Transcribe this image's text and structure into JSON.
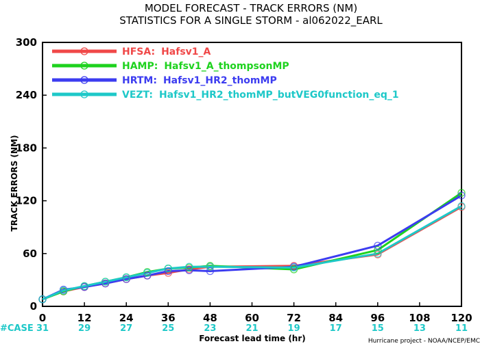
{
  "title_line1": "MODEL FORECAST - TRACK ERRORS (NM)",
  "title_line2": "STATISTICS FOR A SINGLE STORM - al062022_EARL",
  "credit": "Hurricane project - NOAA/NCEP/EMC",
  "case_label": "#CASE",
  "chart_data": {
    "type": "line",
    "title": "MODEL FORECAST - TRACK ERRORS (NM)",
    "subtitle": "STATISTICS FOR A SINGLE STORM - al062022_EARL",
    "xlabel": "Forecast lead time (hr)",
    "ylabel": "TRACK ERRORS (NM)",
    "xlim": [
      0,
      120
    ],
    "ylim": [
      0,
      300
    ],
    "x_ticks": [
      0,
      12,
      24,
      36,
      48,
      60,
      72,
      84,
      96,
      108,
      120
    ],
    "y_ticks": [
      0,
      60,
      120,
      180,
      240,
      300
    ],
    "y_tick_labels": [
      "0",
      "60",
      "120",
      "180",
      "240",
      "300"
    ],
    "grid": false,
    "legend": "top-left",
    "case_counts": [
      "31",
      "29",
      "27",
      "25",
      "23",
      "21",
      "19",
      "17",
      "15",
      "13",
      "11"
    ],
    "series": [
      {
        "code": "HFSA:",
        "name": "Hafsv1_A",
        "color": "#f04848",
        "x": [
          0,
          6,
          12,
          18,
          24,
          30,
          36,
          42,
          48,
          72,
          96,
          120
        ],
        "y": [
          8,
          17,
          22,
          26,
          31,
          35,
          38,
          42,
          45,
          46,
          59,
          113
        ]
      },
      {
        "code": "HAMP:",
        "name": "Hafsv1_A_thompsonMP",
        "color": "#1ed21e",
        "x": [
          0,
          6,
          12,
          18,
          24,
          30,
          36,
          42,
          48,
          72,
          96,
          120
        ],
        "y": [
          8,
          17,
          23,
          28,
          33,
          39,
          43,
          44,
          46,
          42,
          64,
          129
        ]
      },
      {
        "code": "HRTM:",
        "name": "Hafsv1_HR2_thomMP",
        "color": "#3c3cf0",
        "x": [
          0,
          6,
          12,
          18,
          24,
          30,
          36,
          42,
          48,
          72,
          96,
          120
        ],
        "y": [
          8,
          19,
          22,
          26,
          31,
          35,
          40,
          41,
          40,
          45,
          69,
          126
        ]
      },
      {
        "code": "VEZT:",
        "name": "Hafsv1_HR2_thomMP_butVEG0function_eq_1",
        "color": "#1ec8c8",
        "x": [
          0,
          6,
          12,
          18,
          24,
          30,
          36,
          42,
          48,
          72,
          96,
          120
        ],
        "y": [
          8,
          18,
          23,
          28,
          33,
          38,
          43,
          45,
          45,
          44,
          60,
          114
        ]
      }
    ]
  }
}
